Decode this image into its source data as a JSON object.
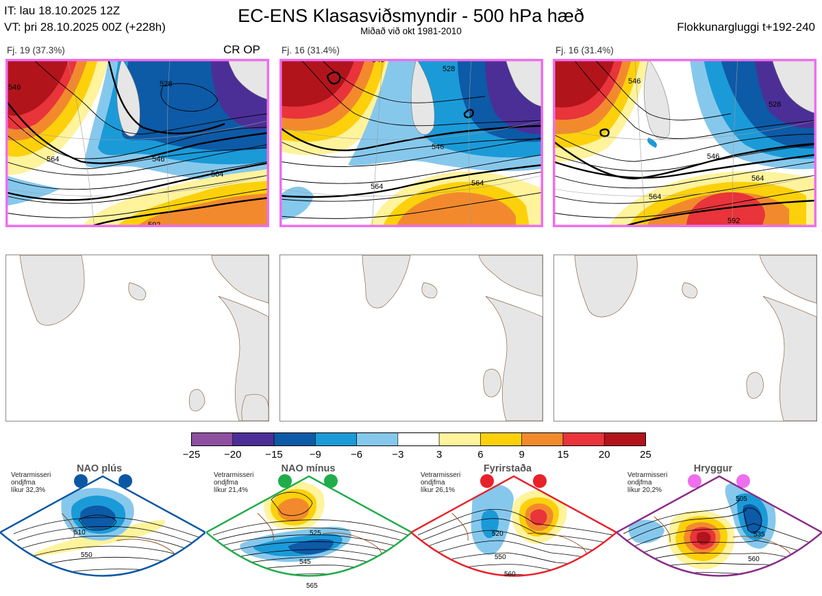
{
  "header": {
    "init_time": "IT: lau 18.10.2025 12Z",
    "valid_time": "VT: þri 28.10.2025 00Z  (+228h)",
    "title": "EC-ENS Klasasviðsmyndir - 500 hPa hæð",
    "subtitle": "Miðað við okt 1981-2010",
    "window": "Flokkunargluggi t+192-240"
  },
  "clusters": [
    {
      "label": "Fj. 19 (37.3%)",
      "tag": "CR OP",
      "contours": [
        "546",
        "564",
        "528",
        "564",
        "546",
        "592"
      ]
    },
    {
      "label": "Fj. 16 (31.4%)",
      "tag": "",
      "contours": [
        "546",
        "564",
        "564",
        "546",
        "528"
      ]
    },
    {
      "label": "Fj. 16 (31.4%)",
      "tag": "",
      "contours": [
        "546",
        "564",
        "564",
        "546",
        "528",
        "592"
      ]
    }
  ],
  "colorbar": {
    "ticks": [
      "−25",
      "−20",
      "−15",
      "−9",
      "−6",
      "−3",
      "3",
      "6",
      "9",
      "15",
      "20",
      "25"
    ],
    "colors": [
      "#8e4fa0",
      "#4b2f97",
      "#0d5aa7",
      "#1b9ad8",
      "#86c8ec",
      "#ffffff",
      "#fff39c",
      "#fcd10b",
      "#f28a2d",
      "#e8343a",
      "#b2141c"
    ]
  },
  "regimes": [
    {
      "name": "NAO plús",
      "info": [
        "Vetrarmisseri",
        "ondjfma",
        "líkur 32,3%"
      ],
      "color": "#0c57a4",
      "contours": [
        "510",
        "550"
      ]
    },
    {
      "name": "NAO mínus",
      "info": [
        "Vetrarmisseri",
        "ondjfma",
        "líkur 21,4%"
      ],
      "color": "#21ac4b",
      "contours": [
        "525",
        "545",
        "565"
      ]
    },
    {
      "name": "Fyrirstaða",
      "info": [
        "Vetrarmisseri",
        "ondjfma",
        "líkur 26,1%"
      ],
      "color": "#e8222a",
      "contours": [
        "520",
        "550",
        "560"
      ]
    },
    {
      "name": "Hryggur",
      "info": [
        "Vetrarmisseri",
        "ondjfma",
        "líkur 20,2%"
      ],
      "color": "#ee6fee",
      "contours": [
        "505",
        "535",
        "560"
      ]
    }
  ]
}
